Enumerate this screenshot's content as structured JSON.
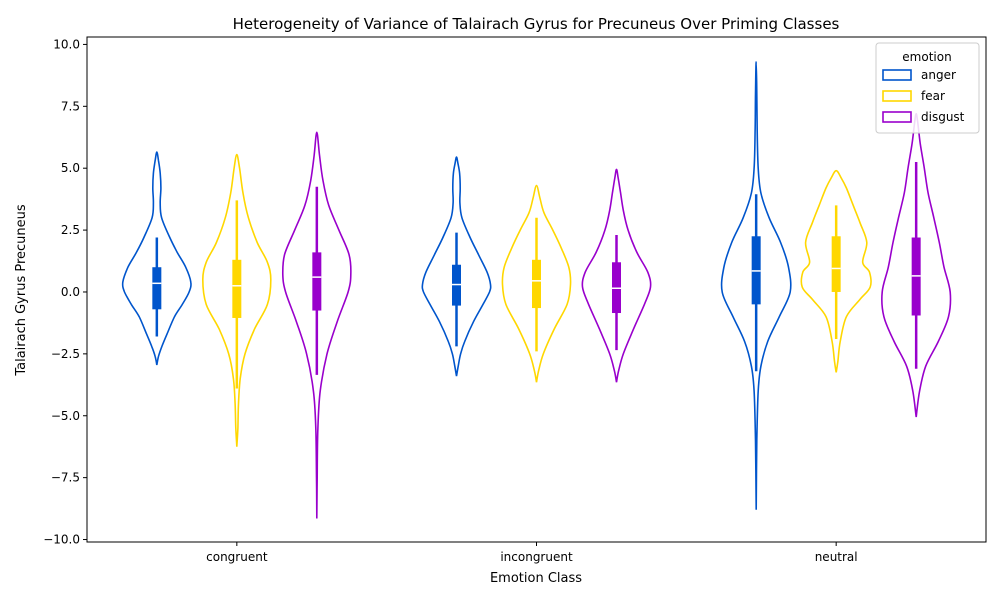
{
  "chart_data": {
    "type": "violin",
    "title": "Heterogeneity of Variance of Talairach Gyrus for Precuneus Over Priming Classes",
    "xlabel": "Emotion Class",
    "ylabel": "Talairach Gyrus Precuneus",
    "categories": [
      "congruent",
      "incongruent",
      "neutral"
    ],
    "ylim": [
      -10.1,
      10.3
    ],
    "yticks": [
      -10.0,
      -7.5,
      -5.0,
      -2.5,
      0.0,
      2.5,
      5.0,
      7.5,
      10.0
    ],
    "ytick_labels": [
      "−10.0",
      "−7.5",
      "−5.0",
      "−2.5",
      "0.0",
      "2.5",
      "5.0",
      "7.5",
      "10.0"
    ],
    "grid": false,
    "legend": {
      "title": "emotion",
      "placement": "top-right"
    },
    "series": [
      {
        "name": "anger",
        "color": "#0055cc",
        "groups": [
          {
            "category": "congruent",
            "min": -1.8,
            "q1": -0.7,
            "median": 0.35,
            "q3": 1.0,
            "max": 2.2,
            "violin": [
              [
                -2.95,
                0
              ],
              [
                -2.6,
                0.05
              ],
              [
                -2.2,
                0.15
              ],
              [
                -1.7,
                0.3
              ],
              [
                -1.0,
                0.52
              ],
              [
                -0.5,
                0.75
              ],
              [
                0.0,
                0.95
              ],
              [
                0.4,
                1.0
              ],
              [
                1.0,
                0.85
              ],
              [
                1.6,
                0.6
              ],
              [
                2.2,
                0.38
              ],
              [
                3.0,
                0.14
              ],
              [
                3.6,
                0.1
              ],
              [
                4.2,
                0.12
              ],
              [
                4.8,
                0.1
              ],
              [
                5.3,
                0.05
              ],
              [
                5.65,
                0
              ]
            ]
          },
          {
            "category": "incongruent",
            "min": -2.2,
            "q1": -0.55,
            "median": 0.3,
            "q3": 1.1,
            "max": 2.4,
            "violin": [
              [
                -3.4,
                0
              ],
              [
                -3.0,
                0.05
              ],
              [
                -2.5,
                0.12
              ],
              [
                -2.0,
                0.24
              ],
              [
                -1.2,
                0.5
              ],
              [
                -0.5,
                0.78
              ],
              [
                0.0,
                0.97
              ],
              [
                0.3,
                1.0
              ],
              [
                0.8,
                0.9
              ],
              [
                1.5,
                0.65
              ],
              [
                2.2,
                0.4
              ],
              [
                3.0,
                0.16
              ],
              [
                3.6,
                0.1
              ],
              [
                4.2,
                0.11
              ],
              [
                4.8,
                0.09
              ],
              [
                5.2,
                0.04
              ],
              [
                5.45,
                0
              ]
            ]
          },
          {
            "category": "neutral",
            "min": -3.2,
            "q1": -0.5,
            "median": 0.85,
            "q3": 2.25,
            "max": 3.95,
            "violin": [
              [
                -8.8,
                0
              ],
              [
                -6.0,
                0.02
              ],
              [
                -4.0,
                0.06
              ],
              [
                -3.0,
                0.14
              ],
              [
                -2.0,
                0.34
              ],
              [
                -1.0,
                0.68
              ],
              [
                0.0,
                1.0
              ],
              [
                1.0,
                0.95
              ],
              [
                2.0,
                0.72
              ],
              [
                3.0,
                0.38
              ],
              [
                4.0,
                0.14
              ],
              [
                5.0,
                0.06
              ],
              [
                6.5,
                0.03
              ],
              [
                8.0,
                0.02
              ],
              [
                9.3,
                0
              ]
            ]
          }
        ]
      },
      {
        "name": "fear",
        "color": "#ffd700",
        "groups": [
          {
            "category": "congruent",
            "min": -3.9,
            "q1": -1.05,
            "median": 0.25,
            "q3": 1.3,
            "max": 3.7,
            "violin": [
              [
                -6.25,
                0
              ],
              [
                -5.5,
                0.03
              ],
              [
                -4.5,
                0.05
              ],
              [
                -3.5,
                0.1
              ],
              [
                -2.5,
                0.24
              ],
              [
                -1.5,
                0.52
              ],
              [
                -0.5,
                0.9
              ],
              [
                0.5,
                1.0
              ],
              [
                1.2,
                0.9
              ],
              [
                2.0,
                0.6
              ],
              [
                3.0,
                0.34
              ],
              [
                4.0,
                0.18
              ],
              [
                5.0,
                0.08
              ],
              [
                5.55,
                0
              ]
            ]
          },
          {
            "category": "incongruent",
            "min": -2.4,
            "q1": -0.65,
            "median": 0.45,
            "q3": 1.3,
            "max": 3.0,
            "violin": [
              [
                -3.65,
                0
              ],
              [
                -3.2,
                0.06
              ],
              [
                -2.5,
                0.2
              ],
              [
                -1.5,
                0.52
              ],
              [
                -0.5,
                0.9
              ],
              [
                0.3,
                1.0
              ],
              [
                1.0,
                0.95
              ],
              [
                1.8,
                0.72
              ],
              [
                2.5,
                0.48
              ],
              [
                3.2,
                0.22
              ],
              [
                3.8,
                0.1
              ],
              [
                4.3,
                0
              ]
            ]
          },
          {
            "category": "neutral",
            "min": -1.9,
            "q1": 0.0,
            "median": 0.95,
            "q3": 2.25,
            "max": 3.5,
            "violin": [
              [
                -3.25,
                0
              ],
              [
                -2.8,
                0.05
              ],
              [
                -2.0,
                0.12
              ],
              [
                -1.0,
                0.3
              ],
              [
                -0.3,
                0.7
              ],
              [
                0.2,
                1.0
              ],
              [
                0.8,
                0.98
              ],
              [
                1.2,
                0.78
              ],
              [
                2.0,
                0.9
              ],
              [
                2.8,
                0.7
              ],
              [
                3.5,
                0.5
              ],
              [
                4.2,
                0.3
              ],
              [
                4.6,
                0.15
              ],
              [
                4.9,
                0
              ]
            ]
          }
        ]
      },
      {
        "name": "disgust",
        "color": "#9900cc",
        "groups": [
          {
            "category": "congruent",
            "min": -3.35,
            "q1": -0.75,
            "median": 0.6,
            "q3": 1.6,
            "max": 4.25,
            "violin": [
              [
                -9.15,
                0
              ],
              [
                -7.5,
                0.01
              ],
              [
                -5.5,
                0.03
              ],
              [
                -4.0,
                0.1
              ],
              [
                -2.5,
                0.3
              ],
              [
                -1.2,
                0.6
              ],
              [
                0.0,
                0.92
              ],
              [
                0.7,
                1.0
              ],
              [
                1.5,
                0.95
              ],
              [
                2.5,
                0.65
              ],
              [
                3.5,
                0.35
              ],
              [
                4.5,
                0.18
              ],
              [
                5.5,
                0.08
              ],
              [
                6.45,
                0
              ]
            ]
          },
          {
            "category": "incongruent",
            "min": -2.35,
            "q1": -0.85,
            "median": 0.15,
            "q3": 1.2,
            "max": 2.3,
            "violin": [
              [
                -3.65,
                0
              ],
              [
                -3.2,
                0.06
              ],
              [
                -2.5,
                0.2
              ],
              [
                -1.5,
                0.5
              ],
              [
                -0.5,
                0.82
              ],
              [
                0.2,
                1.0
              ],
              [
                0.8,
                0.92
              ],
              [
                1.6,
                0.6
              ],
              [
                2.5,
                0.34
              ],
              [
                3.3,
                0.2
              ],
              [
                4.0,
                0.12
              ],
              [
                4.6,
                0.05
              ],
              [
                4.95,
                0
              ]
            ]
          },
          {
            "category": "neutral",
            "min": -3.1,
            "q1": -0.95,
            "median": 0.65,
            "q3": 2.2,
            "max": 5.25,
            "violin": [
              [
                -5.05,
                0
              ],
              [
                -4.0,
                0.1
              ],
              [
                -3.0,
                0.28
              ],
              [
                -2.0,
                0.65
              ],
              [
                -1.0,
                0.95
              ],
              [
                0.0,
                1.0
              ],
              [
                1.0,
                0.82
              ],
              [
                2.0,
                0.68
              ],
              [
                3.0,
                0.52
              ],
              [
                4.0,
                0.35
              ],
              [
                5.0,
                0.24
              ],
              [
                6.0,
                0.12
              ],
              [
                6.8,
                0.05
              ],
              [
                7.2,
                0
              ]
            ]
          }
        ]
      }
    ]
  }
}
